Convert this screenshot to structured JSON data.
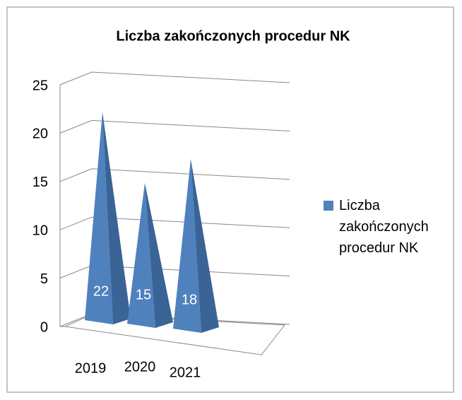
{
  "chart_data": {
    "type": "pyramid3d",
    "title": "Liczba zakończonych procedur NK",
    "categories": [
      "2019",
      "2020",
      "2021"
    ],
    "series": [
      {
        "name": "Liczba zakończonych procedur NK",
        "color": "#4f81bd",
        "values": [
          22,
          15,
          18
        ]
      }
    ],
    "ylim": [
      0,
      25
    ],
    "yticks": [
      0,
      5,
      10,
      15,
      20,
      25
    ],
    "grid": true,
    "legend": "right"
  }
}
